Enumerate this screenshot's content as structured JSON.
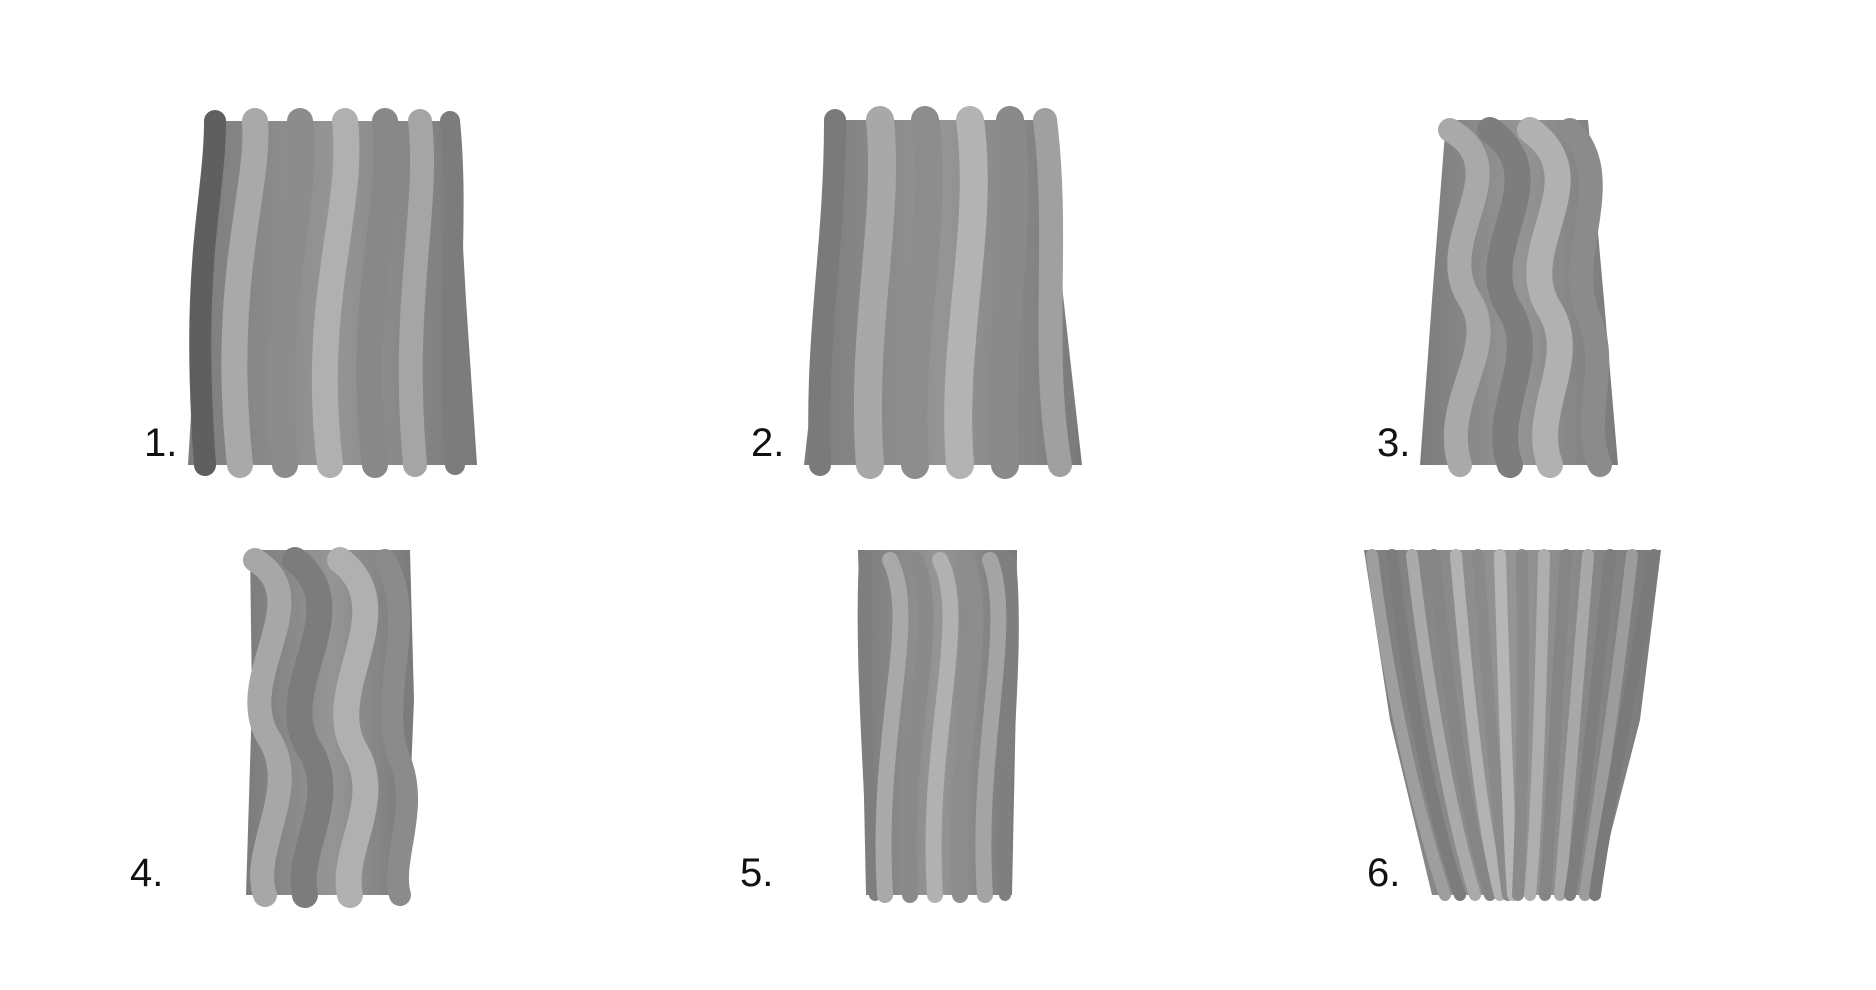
{
  "panels": [
    {
      "id": 1,
      "label": "1.",
      "shape": "wavy-fluted-tapered",
      "ribs": 8,
      "twist": "wavy",
      "color": "#8a8a8a"
    },
    {
      "id": 2,
      "label": "2.",
      "shape": "wavy-fluted-flared",
      "ribs": 8,
      "twist": "wavy",
      "color": "#8a8a8a"
    },
    {
      "id": 3,
      "label": "3.",
      "shape": "spiral-column",
      "ribs": 6,
      "twist": "spiral",
      "color": "#8a8a8a"
    },
    {
      "id": 4,
      "label": "4.",
      "shape": "spiral-column-narrow",
      "ribs": 6,
      "twist": "spiral",
      "color": "#8a8a8a"
    },
    {
      "id": 5,
      "label": "5.",
      "shape": "twisted-fluted-column",
      "ribs": 10,
      "twist": "diagonal",
      "color": "#8a8a8a"
    },
    {
      "id": 6,
      "label": "6.",
      "shape": "fluted-cup",
      "ribs": 14,
      "twist": "straight",
      "color": "#8a8a8a"
    }
  ]
}
